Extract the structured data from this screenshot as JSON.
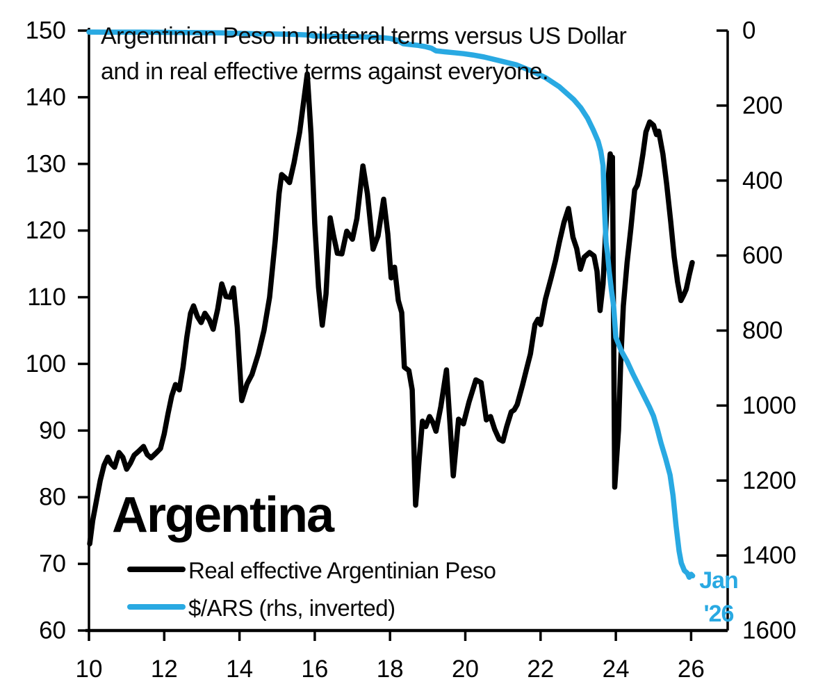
{
  "title": {
    "line1": "Argentinian Peso in bilateral terms versus US Dollar",
    "line2": "and in real effective terms against everyone."
  },
  "country_label": "Argentina",
  "annotation": {
    "line1": "Jan",
    "line2": "'26",
    "color": "#29A9E2"
  },
  "legend": {
    "items": [
      {
        "label": "Real effective Argentinian Peso",
        "color": "#000000"
      },
      {
        "label": "$/ARS (rhs, inverted)",
        "color": "#29A9E2"
      }
    ]
  },
  "colors": {
    "axis": "#000000",
    "background": "#ffffff",
    "accent_blue": "#29A9E2"
  },
  "chart_data": {
    "type": "line",
    "title": "Argentinian Peso in bilateral terms versus US Dollar and in real effective terms against everyone.",
    "x_axis": {
      "ticks": [
        10,
        12,
        14,
        16,
        18,
        20,
        22,
        24,
        26
      ],
      "range": [
        10,
        26.96
      ]
    },
    "left_y_axis": {
      "ticks": [
        150,
        140,
        130,
        120,
        110,
        100,
        90,
        80,
        70,
        60
      ],
      "range": [
        60,
        150
      ]
    },
    "right_y_axis": {
      "ticks": [
        0,
        200,
        400,
        600,
        800,
        1000,
        1200,
        1400,
        1600
      ],
      "range": [
        0,
        1600
      ],
      "inverted": true
    },
    "grid": false,
    "legend_position": "bottom-left-inside",
    "annotation_text": "Jan '26",
    "series": [
      {
        "name": "Real effective Argentinian Peso",
        "color": "#000000",
        "axis": "left",
        "points": [
          [
            10.02,
            73.0
          ],
          [
            10.1,
            76.5
          ],
          [
            10.2,
            79.5
          ],
          [
            10.3,
            82.5
          ],
          [
            10.4,
            84.8
          ],
          [
            10.5,
            86.0
          ],
          [
            10.58,
            85.1
          ],
          [
            10.68,
            84.5
          ],
          [
            10.8,
            86.7
          ],
          [
            10.9,
            86.0
          ],
          [
            11.0,
            84.2
          ],
          [
            11.1,
            85.1
          ],
          [
            11.2,
            86.3
          ],
          [
            11.32,
            86.9
          ],
          [
            11.45,
            87.6
          ],
          [
            11.55,
            86.4
          ],
          [
            11.65,
            85.9
          ],
          [
            11.78,
            86.6
          ],
          [
            11.9,
            87.3
          ],
          [
            12.0,
            89.5
          ],
          [
            12.1,
            92.5
          ],
          [
            12.2,
            95.2
          ],
          [
            12.3,
            96.9
          ],
          [
            12.4,
            96.1
          ],
          [
            12.5,
            99.5
          ],
          [
            12.6,
            104.0
          ],
          [
            12.7,
            107.6
          ],
          [
            12.78,
            108.7
          ],
          [
            12.88,
            107.1
          ],
          [
            12.98,
            106.2
          ],
          [
            13.08,
            107.6
          ],
          [
            13.2,
            106.6
          ],
          [
            13.3,
            105.2
          ],
          [
            13.42,
            108.2
          ],
          [
            13.53,
            112.0
          ],
          [
            13.64,
            110.1
          ],
          [
            13.75,
            110.0
          ],
          [
            13.84,
            111.4
          ],
          [
            13.94,
            105.5
          ],
          [
            14.06,
            94.5
          ],
          [
            14.2,
            97.0
          ],
          [
            14.33,
            98.4
          ],
          [
            14.5,
            101.5
          ],
          [
            14.65,
            105.0
          ],
          [
            14.8,
            110.0
          ],
          [
            14.95,
            118.5
          ],
          [
            15.05,
            125.5
          ],
          [
            15.12,
            128.4
          ],
          [
            15.22,
            127.9
          ],
          [
            15.33,
            127.2
          ],
          [
            15.45,
            130.2
          ],
          [
            15.6,
            134.8
          ],
          [
            15.8,
            143.5
          ],
          [
            15.9,
            134.5
          ],
          [
            16.0,
            121.0
          ],
          [
            16.1,
            111.5
          ],
          [
            16.2,
            105.8
          ],
          [
            16.3,
            110.5
          ],
          [
            16.41,
            121.9
          ],
          [
            16.5,
            119.2
          ],
          [
            16.6,
            116.6
          ],
          [
            16.72,
            116.5
          ],
          [
            16.85,
            119.9
          ],
          [
            17.0,
            118.7
          ],
          [
            17.12,
            121.8
          ],
          [
            17.28,
            129.7
          ],
          [
            17.4,
            125.5
          ],
          [
            17.55,
            117.2
          ],
          [
            17.68,
            119.2
          ],
          [
            17.83,
            124.7
          ],
          [
            17.94,
            119.5
          ],
          [
            18.03,
            112.9
          ],
          [
            18.12,
            114.5
          ],
          [
            18.22,
            109.5
          ],
          [
            18.31,
            107.7
          ],
          [
            18.38,
            99.5
          ],
          [
            18.5,
            99.0
          ],
          [
            18.59,
            96.1
          ],
          [
            18.68,
            78.8
          ],
          [
            18.78,
            86.0
          ],
          [
            18.86,
            91.4
          ],
          [
            18.95,
            90.6
          ],
          [
            19.05,
            92.1
          ],
          [
            19.14,
            91.2
          ],
          [
            19.22,
            89.9
          ],
          [
            19.35,
            93.6
          ],
          [
            19.5,
            99.1
          ],
          [
            19.6,
            90.5
          ],
          [
            19.68,
            83.2
          ],
          [
            19.82,
            91.7
          ],
          [
            19.95,
            91.0
          ],
          [
            20.1,
            94.3
          ],
          [
            20.28,
            97.6
          ],
          [
            20.42,
            97.2
          ],
          [
            20.56,
            91.6
          ],
          [
            20.67,
            92.1
          ],
          [
            20.78,
            90.2
          ],
          [
            20.9,
            88.7
          ],
          [
            21.0,
            88.4
          ],
          [
            21.1,
            90.6
          ],
          [
            21.22,
            92.8
          ],
          [
            21.3,
            93.1
          ],
          [
            21.38,
            93.9
          ],
          [
            21.52,
            96.8
          ],
          [
            21.63,
            99.3
          ],
          [
            21.73,
            101.5
          ],
          [
            21.85,
            105.9
          ],
          [
            21.93,
            106.7
          ],
          [
            22.0,
            105.9
          ],
          [
            22.13,
            109.7
          ],
          [
            22.28,
            112.9
          ],
          [
            22.4,
            115.6
          ],
          [
            22.5,
            118.3
          ],
          [
            22.62,
            121.2
          ],
          [
            22.74,
            123.3
          ],
          [
            22.86,
            119.0
          ],
          [
            22.96,
            117.3
          ],
          [
            23.06,
            114.2
          ],
          [
            23.16,
            116.0
          ],
          [
            23.3,
            116.7
          ],
          [
            23.42,
            116.2
          ],
          [
            23.5,
            113.9
          ],
          [
            23.58,
            108.0
          ],
          [
            23.66,
            112.0
          ],
          [
            23.74,
            121.0
          ],
          [
            23.8,
            128.0
          ],
          [
            23.85,
            131.5
          ],
          [
            23.89,
            130.6
          ],
          [
            23.91,
            131.0
          ],
          [
            23.97,
            81.5
          ],
          [
            24.07,
            90.0
          ],
          [
            24.13,
            100.3
          ],
          [
            24.2,
            108.7
          ],
          [
            24.3,
            115.2
          ],
          [
            24.4,
            120.4
          ],
          [
            24.5,
            126.1
          ],
          [
            24.57,
            126.8
          ],
          [
            24.63,
            128.3
          ],
          [
            24.72,
            131.5
          ],
          [
            24.8,
            134.8
          ],
          [
            24.9,
            136.3
          ],
          [
            25.0,
            135.8
          ],
          [
            25.08,
            134.4
          ],
          [
            25.14,
            134.9
          ],
          [
            25.25,
            131.5
          ],
          [
            25.35,
            127.0
          ],
          [
            25.46,
            121.2
          ],
          [
            25.55,
            116.1
          ],
          [
            25.64,
            112.3
          ],
          [
            25.73,
            109.5
          ],
          [
            25.8,
            110.3
          ],
          [
            25.87,
            111.2
          ],
          [
            25.95,
            113.3
          ],
          [
            26.03,
            115.2
          ]
        ]
      },
      {
        "name": "$/ARS (rhs, inverted)",
        "color": "#29A9E2",
        "axis": "right",
        "points": [
          [
            10.0,
            3.9
          ],
          [
            10.5,
            4.0
          ],
          [
            11.0,
            4.2
          ],
          [
            11.5,
            4.35
          ],
          [
            12.0,
            4.6
          ],
          [
            12.5,
            5.0
          ],
          [
            13.0,
            5.5
          ],
          [
            13.5,
            6.2
          ],
          [
            14.0,
            7.5
          ],
          [
            14.5,
            8.5
          ],
          [
            15.0,
            9.3
          ],
          [
            15.4,
            10.0
          ],
          [
            15.8,
            11.5
          ],
          [
            15.88,
            12.2
          ],
          [
            15.96,
            14.2
          ],
          [
            16.3,
            15.0
          ],
          [
            16.7,
            15.8
          ],
          [
            17.1,
            16.6
          ],
          [
            17.5,
            17.5
          ],
          [
            17.8,
            19.0
          ],
          [
            18.0,
            21.0
          ],
          [
            18.2,
            26.0
          ],
          [
            18.35,
            35.0
          ],
          [
            18.55,
            37.5
          ],
          [
            18.75,
            39.5
          ],
          [
            18.95,
            43.0
          ],
          [
            19.1,
            47.0
          ],
          [
            19.22,
            54.0
          ],
          [
            19.45,
            56.5
          ],
          [
            19.7,
            59.0
          ],
          [
            19.95,
            61.5
          ],
          [
            20.2,
            65.0
          ],
          [
            20.5,
            70.5
          ],
          [
            20.9,
            80.0
          ],
          [
            21.35,
            91.0
          ],
          [
            21.77,
            108.0
          ],
          [
            22.14,
            126.0
          ],
          [
            22.5,
            150.0
          ],
          [
            22.88,
            184.0
          ],
          [
            23.07,
            206.0
          ],
          [
            23.25,
            234.0
          ],
          [
            23.4,
            265.0
          ],
          [
            23.53,
            295.0
          ],
          [
            23.6,
            321.0
          ],
          [
            23.66,
            360.0
          ],
          [
            23.7,
            480.0
          ],
          [
            23.74,
            565.0
          ],
          [
            23.78,
            595.0
          ],
          [
            23.82,
            640.0
          ],
          [
            23.88,
            690.0
          ],
          [
            23.94,
            735.0
          ],
          [
            24.0,
            818.0
          ],
          [
            24.15,
            855.0
          ],
          [
            24.3,
            882.0
          ],
          [
            24.45,
            915.0
          ],
          [
            24.6,
            945.0
          ],
          [
            24.75,
            975.0
          ],
          [
            24.9,
            1005.0
          ],
          [
            25.0,
            1028.0
          ],
          [
            25.1,
            1062.0
          ],
          [
            25.2,
            1100.0
          ],
          [
            25.32,
            1140.0
          ],
          [
            25.44,
            1185.0
          ],
          [
            25.52,
            1240.0
          ],
          [
            25.6,
            1320.0
          ],
          [
            25.68,
            1388.0
          ],
          [
            25.74,
            1420.0
          ],
          [
            25.82,
            1440.0
          ],
          [
            25.9,
            1447.0
          ],
          [
            25.95,
            1458.0
          ],
          [
            26.0,
            1450.0
          ],
          [
            26.04,
            1454.0
          ]
        ]
      }
    ]
  }
}
